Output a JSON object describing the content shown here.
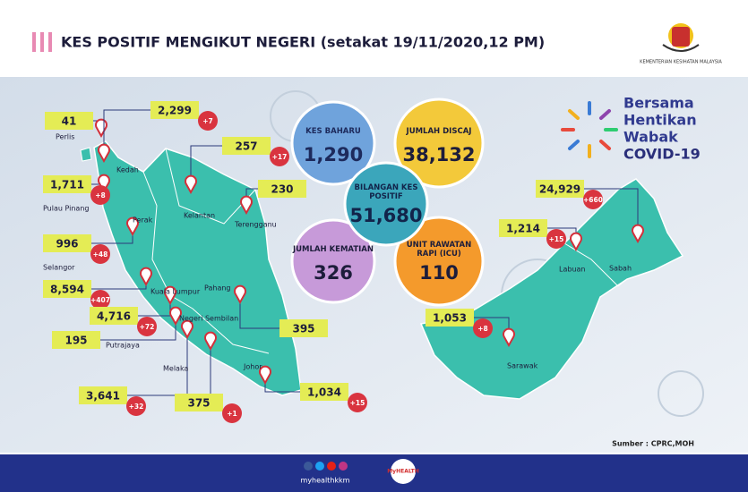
{
  "header": {
    "title": "KES POSITIF MENGIKUT NEGERI (setakat 19/11/2020,12 PM)",
    "ministry": "KEMENTERIAN KESIHATAN MALAYSIA"
  },
  "campaign": {
    "lines": [
      "Bersama",
      "Hentikan",
      "Wabak",
      "COVID-19"
    ]
  },
  "summary": [
    {
      "label": "KES BAHARU",
      "value": "1,290"
    },
    {
      "label": "JUMLAH DISCAJ",
      "value": "38,132"
    },
    {
      "label": "JUMLAH KEMATIAN",
      "value": "326"
    },
    {
      "label": "UNIT RAWATAN RAPI (ICU)",
      "value": "110"
    },
    {
      "label": "BILANGAN KES POSITIF",
      "value": "51,680"
    }
  ],
  "states": [
    {
      "name": "Perlis",
      "total": "41"
    },
    {
      "name": "Kedah",
      "total": "2,299",
      "new": "+7"
    },
    {
      "name": "Pulau Pinang",
      "total": "1,711",
      "new": "+8"
    },
    {
      "name": "Perak",
      "total": "996",
      "new": "+48"
    },
    {
      "name": "Kelantan",
      "total": "257",
      "new": "+17"
    },
    {
      "name": "Terengganu",
      "total": "230"
    },
    {
      "name": "Selangor",
      "total": "8,594",
      "new": "+407"
    },
    {
      "name": "Kuala Lumpur",
      "total": "4,716",
      "new": "+72"
    },
    {
      "name": "Putrajaya",
      "total": "195"
    },
    {
      "name": "Pahang",
      "total": "395"
    },
    {
      "name": "Negeri Sembilan",
      "total": "3,641",
      "new": "+32"
    },
    {
      "name": "Melaka",
      "total": "375",
      "new": "+1"
    },
    {
      "name": "Johor",
      "total": "1,034",
      "new": "+15"
    },
    {
      "name": "Labuan",
      "total": "1,214",
      "new": "+15"
    },
    {
      "name": "Sabah",
      "total": "24,929",
      "new": "+660"
    },
    {
      "name": "Sarawak",
      "total": "1,053",
      "new": "+8"
    }
  ],
  "source": "Sumber : CPRC,MOH",
  "footer": {
    "handle": "myhealthkkm",
    "brand": "MyHEALTH"
  }
}
